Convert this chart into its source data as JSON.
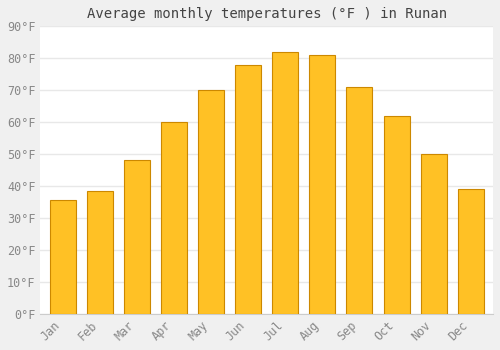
{
  "title": "Average monthly temperatures (°F ) in Runan",
  "months": [
    "Jan",
    "Feb",
    "Mar",
    "Apr",
    "May",
    "Jun",
    "Jul",
    "Aug",
    "Sep",
    "Oct",
    "Nov",
    "Dec"
  ],
  "values": [
    35.5,
    38.5,
    48,
    60,
    70,
    78,
    82,
    81,
    71,
    62,
    50,
    39
  ],
  "bar_color": "#FFC125",
  "bar_edge_color": "#CC8800",
  "ylim": [
    0,
    90
  ],
  "yticks": [
    0,
    10,
    20,
    30,
    40,
    50,
    60,
    70,
    80,
    90
  ],
  "ytick_labels": [
    "0°F",
    "10°F",
    "20°F",
    "30°F",
    "40°F",
    "50°F",
    "60°F",
    "70°F",
    "80°F",
    "90°F"
  ],
  "background_color": "#f0f0f0",
  "plot_bg_color": "#ffffff",
  "grid_color": "#e8e8e8",
  "title_fontsize": 10,
  "tick_fontsize": 8.5,
  "tick_color": "#888888",
  "title_color": "#444444",
  "font_family": "monospace",
  "bar_width": 0.7
}
